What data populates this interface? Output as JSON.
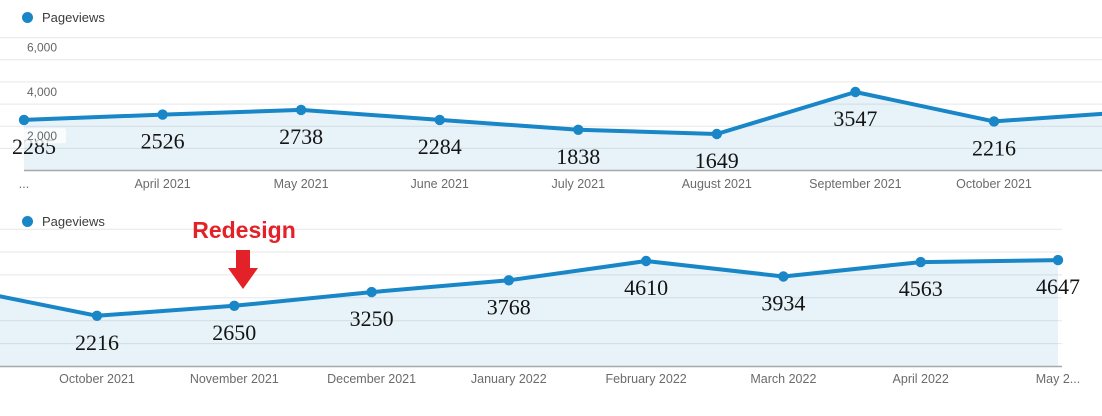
{
  "colors": {
    "line_blue": "#1886c7",
    "area_fill": "rgba(24,134,199,0.10)",
    "gridline": "#e7e7e7",
    "axis_line": "#a8a8a8",
    "annotation_red": "#e32128"
  },
  "chart_data": [
    {
      "type": "area",
      "title": "",
      "legend": [
        "Pageviews"
      ],
      "categories": [
        "...",
        "April 2021",
        "May 2021",
        "June 2021",
        "July 2021",
        "August 2021",
        "September 2021",
        "October 2021"
      ],
      "values": [
        2285,
        2526,
        2738,
        2284,
        1838,
        1649,
        3547,
        2216
      ],
      "data_labels": [
        "2285",
        "2526",
        "2738",
        "2284",
        "1838",
        "1649",
        "3547",
        "2216"
      ],
      "xlabel": "",
      "ylabel": "",
      "ylim": [
        0,
        6500
      ],
      "grid": true,
      "grid_values": [
        1000,
        2000,
        3000,
        4000,
        5000,
        6000
      ],
      "ytick_values": [
        2000,
        4000,
        6000
      ],
      "ytick_labels": [
        "2,000",
        "4,000",
        "6,000"
      ],
      "legend_position": "top-left",
      "edge_exit_value": 2554
    },
    {
      "type": "area",
      "title": "",
      "legend": [
        "Pageviews"
      ],
      "categories": [
        "October 2021",
        "November 2021",
        "December 2021",
        "January 2022",
        "February 2022",
        "March 2022",
        "April 2022",
        "May 2..."
      ],
      "values": [
        2216,
        2650,
        3250,
        3768,
        4610,
        3934,
        4563,
        4647
      ],
      "data_labels": [
        "2216",
        "2650",
        "3250",
        "3768",
        "4610",
        "3934",
        "4563",
        "4647"
      ],
      "xlabel": "",
      "ylabel": "",
      "ylim": [
        0,
        6500
      ],
      "grid": true,
      "grid_values": [
        1000,
        2000,
        3000,
        4000,
        5000,
        6000
      ],
      "ytick_values": [],
      "ytick_labels": [],
      "legend_position": "top-left",
      "edge_entry_value": 3066,
      "annotation": {
        "text": "Redesign",
        "color": "#e32128",
        "target_category": "November 2021"
      }
    }
  ]
}
